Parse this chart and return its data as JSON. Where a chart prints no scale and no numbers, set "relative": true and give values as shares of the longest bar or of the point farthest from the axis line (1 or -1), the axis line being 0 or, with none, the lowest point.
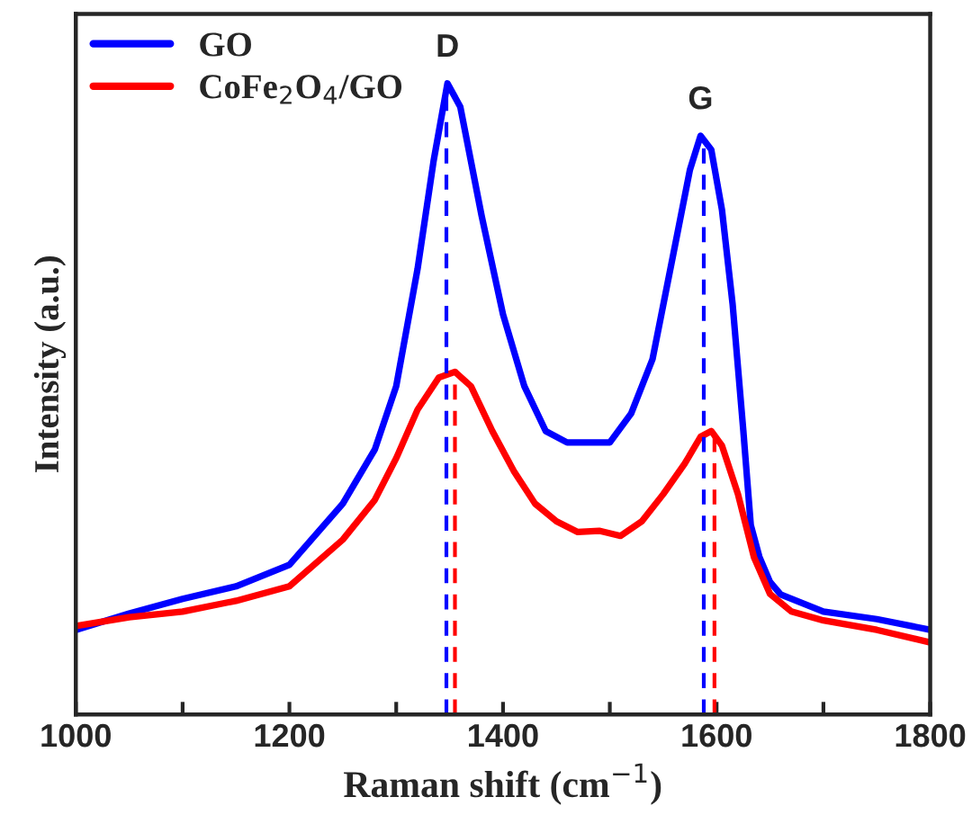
{
  "chart_data": {
    "type": "line",
    "relative": true,
    "xlabel": "Raman shift (cm$^{−1}$)",
    "ylabel": "Intensity (a.u.)",
    "xlim": [
      1000,
      1800
    ],
    "xticks": [
      1000,
      {
        "value": 1100,
        "label": null
      },
      1200,
      {
        "value": 1300,
        "label": null
      },
      1400,
      {
        "value": 1500,
        "label": null
      },
      1600,
      {
        "value": 1700,
        "label": null
      },
      1800
    ],
    "legend": "top left",
    "grid": false,
    "series": [
      {
        "name": "GO",
        "color": "#0000ff",
        "x": [
          1000,
          1050,
          1100,
          1150,
          1200,
          1250,
          1280,
          1300,
          1320,
          1335,
          1348,
          1360,
          1380,
          1400,
          1420,
          1440,
          1460,
          1500,
          1520,
          1540,
          1560,
          1575,
          1585,
          1595,
          1605,
          1615,
          1625,
          1632,
          1640,
          1650,
          1660,
          1700,
          1750,
          1800
        ],
        "values": [
          0.134,
          0.16,
          0.183,
          0.203,
          0.237,
          0.334,
          0.42,
          0.52,
          0.706,
          0.877,
          1.0,
          0.963,
          0.79,
          0.634,
          0.52,
          0.449,
          0.431,
          0.431,
          0.477,
          0.563,
          0.734,
          0.863,
          0.917,
          0.895,
          0.8,
          0.65,
          0.45,
          0.3,
          0.25,
          0.21,
          0.19,
          0.163,
          0.151,
          0.134
        ]
      },
      {
        "name": "CoFe$_{2}$O$_{4}$/GO",
        "color": "#ff0000",
        "x": [
          1000,
          1050,
          1100,
          1150,
          1200,
          1250,
          1280,
          1300,
          1320,
          1340,
          1355,
          1370,
          1390,
          1410,
          1430,
          1450,
          1470,
          1490,
          1510,
          1530,
          1550,
          1570,
          1585,
          1595,
          1605,
          1620,
          1635,
          1650,
          1670,
          1700,
          1750,
          1800
        ],
        "values": [
          0.14,
          0.154,
          0.163,
          0.18,
          0.203,
          0.277,
          0.34,
          0.406,
          0.483,
          0.534,
          0.543,
          0.52,
          0.449,
          0.386,
          0.334,
          0.306,
          0.289,
          0.291,
          0.283,
          0.306,
          0.349,
          0.397,
          0.44,
          0.449,
          0.426,
          0.349,
          0.249,
          0.191,
          0.163,
          0.149,
          0.134,
          0.114
        ]
      }
    ],
    "ref_lines": [
      {
        "axis": "x",
        "value": 1347,
        "color": "#0000ff",
        "line_style": "dashed"
      },
      {
        "axis": "x",
        "value": 1355,
        "color": "#ff0000",
        "line_style": "dashed"
      },
      {
        "axis": "x",
        "value": 1588,
        "color": "#0000ff",
        "line_style": "dashed"
      },
      {
        "axis": "x",
        "value": 1598,
        "color": "#ff0000",
        "line_style": "dashed"
      }
    ],
    "annotations": [
      {
        "text": "D",
        "x": 1348,
        "y": 1.0
      },
      {
        "text": "G",
        "x": 1585,
        "y": 0.917
      }
    ]
  }
}
